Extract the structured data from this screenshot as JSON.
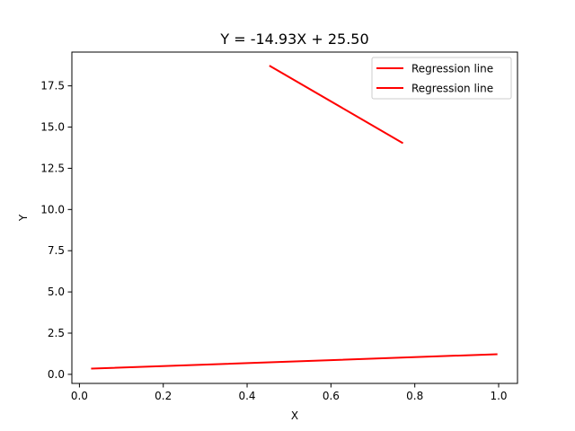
{
  "chart_data": {
    "type": "line",
    "title": "Y = -14.93X + 25.50",
    "xlabel": "X",
    "ylabel": "Y",
    "xlim": [
      -0.018,
      1.045
    ],
    "ylim": [
      -0.55,
      19.55
    ],
    "xticks": [
      0.0,
      0.2,
      0.4,
      0.6,
      0.8,
      1.0
    ],
    "xtick_labels": [
      "0.0",
      "0.2",
      "0.4",
      "0.6",
      "0.8",
      "1.0"
    ],
    "yticks": [
      0.0,
      2.5,
      5.0,
      7.5,
      10.0,
      12.5,
      15.0,
      17.5
    ],
    "ytick_labels": [
      "0.0",
      "2.5",
      "5.0",
      "7.5",
      "10.0",
      "12.5",
      "15.0",
      "17.5"
    ],
    "grid": false,
    "legend_position": "top-right",
    "series": [
      {
        "name": "Regression line",
        "color": "#ff0000",
        "x": [
          0.455,
          0.77
        ],
        "y": [
          18.7,
          14.05
        ]
      },
      {
        "name": "Regression line",
        "color": "#ff0000",
        "x": [
          0.03,
          0.995
        ],
        "y": [
          0.35,
          1.22
        ]
      }
    ]
  }
}
